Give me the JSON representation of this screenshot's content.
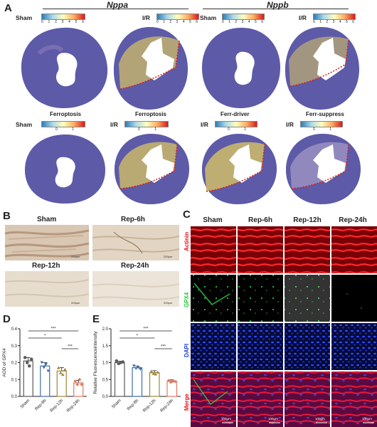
{
  "panelA": {
    "letter": "A",
    "genes": [
      "Nppa",
      "Nppb"
    ],
    "row1": [
      {
        "cond": "Sham",
        "ticks": [
          "0",
          "1",
          "2",
          "3",
          "4",
          "5",
          "6"
        ]
      },
      {
        "cond": "I/R",
        "ticks": [
          "0",
          "1",
          "2",
          "3",
          "4",
          "5",
          "6"
        ]
      },
      {
        "cond": "Sham",
        "ticks": [
          "0",
          "1",
          "2",
          "3",
          "4",
          "5",
          "6"
        ]
      },
      {
        "cond": "I/R",
        "ticks": [
          "0",
          "1",
          "2",
          "3",
          "4",
          "5",
          "6"
        ]
      }
    ],
    "row2": [
      {
        "title": "Ferroptosis",
        "cond": "Sham",
        "ticks": [
          "0",
          "1"
        ]
      },
      {
        "title": "Ferroptosis",
        "cond": "I/R",
        "ticks": [
          "0",
          "1"
        ]
      },
      {
        "title": "Ferr-driver",
        "cond": "I/R",
        "ticks": [
          "0",
          "1"
        ]
      },
      {
        "title": "Ferr-suppress",
        "cond": "I/R",
        "ticks": [
          "0",
          "1"
        ]
      }
    ]
  },
  "panelB": {
    "letter": "B",
    "labels": [
      "Sham",
      "Rep-6h",
      "Rep-12h",
      "Rep-24h"
    ],
    "scale": "200μm"
  },
  "panelC": {
    "letter": "C",
    "columns": [
      "Sham",
      "Rep-6h",
      "Rep-12h",
      "Rep-24h"
    ],
    "rows": [
      "Actinin",
      "GPX4",
      "DAPI",
      "Merge"
    ],
    "scale": "100μm",
    "colors": {
      "actinin": "#e8111c",
      "gpx4": "#22c832",
      "dapi": "#1f3fe0"
    }
  },
  "panelD": {
    "letter": "D",
    "chart_data": {
      "type": "bar",
      "categories": [
        "Sham",
        "Rep-6h",
        "Rep-12h",
        "Rep-24h"
      ],
      "values": [
        0.21,
        0.18,
        0.15,
        0.08
      ],
      "points": [
        [
          0.23,
          0.2,
          0.18,
          0.22
        ],
        [
          0.2,
          0.17,
          0.19,
          0.15
        ],
        [
          0.17,
          0.14,
          0.13,
          0.16
        ],
        [
          0.09,
          0.07,
          0.1,
          0.07
        ]
      ],
      "errors": [
        0.02,
        0.02,
        0.02,
        0.015
      ],
      "colors": [
        "#5b5b5b",
        "#3d6fb0",
        "#a08538",
        "#e07a5f"
      ],
      "ylabel": "AOD of GPX4",
      "ylim": [
        0,
        0.4
      ],
      "yticks": [
        "0.0",
        "0.1",
        "0.2",
        "0.3",
        "0.4"
      ],
      "significance": [
        "***",
        "*",
        "***"
      ]
    }
  },
  "panelE": {
    "letter": "E",
    "chart_data": {
      "type": "bar",
      "categories": [
        "Sham",
        "Rep-6h",
        "Rep-12h",
        "Rep-24h"
      ],
      "values": [
        1.0,
        0.85,
        0.7,
        0.45
      ],
      "points": [
        [
          1.05,
          0.97,
          1.0,
          1.02
        ],
        [
          0.9,
          0.82,
          0.86,
          0.8
        ],
        [
          0.75,
          0.68,
          0.66,
          0.72
        ],
        [
          0.47,
          0.42,
          0.45,
          0.44
        ]
      ],
      "errors": [
        0.04,
        0.05,
        0.06,
        0.04
      ],
      "colors": [
        "#5b5b5b",
        "#3d6fb0",
        "#a08538",
        "#e07a5f"
      ],
      "ylabel": "Relative Fluorescenceintensity",
      "ylim": [
        0,
        2.0
      ],
      "yticks": [
        "0.0",
        "0.5",
        "1.0",
        "1.5",
        "2.0"
      ],
      "significance": [
        "***",
        "*",
        "***"
      ]
    }
  }
}
